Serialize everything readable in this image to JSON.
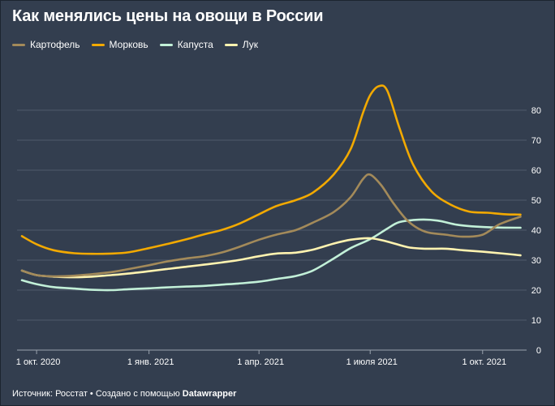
{
  "title": "Как менялись цены на овощи в России",
  "footer": {
    "source": "Источник: Росстат • Создано с помощью ",
    "tool": "Datawrapper"
  },
  "chart_data": {
    "type": "line",
    "xlabel": "",
    "ylabel": "",
    "ylim": [
      0,
      90
    ],
    "yticks": [
      0,
      10,
      20,
      30,
      40,
      50,
      60,
      70,
      80
    ],
    "xlim": [
      "2020-09-15",
      "2021-11-06"
    ],
    "xticks": [
      {
        "date": "2020-10-01",
        "label": "1 окт. 2020"
      },
      {
        "date": "2021-01-01",
        "label": "1 янв. 2021"
      },
      {
        "date": "2021-04-01",
        "label": "1 апр. 2021"
      },
      {
        "date": "2021-07-01",
        "label": "1 июля 2021"
      },
      {
        "date": "2021-10-01",
        "label": "1 окт. 2021"
      }
    ],
    "grid": true,
    "legend": "top-left",
    "series": [
      {
        "name": "Картофель",
        "color": "#a38a5a",
        "points": [
          [
            "2020-09-19",
            26.5
          ],
          [
            "2020-10-01",
            25.0
          ],
          [
            "2020-10-15",
            24.6
          ],
          [
            "2020-11-01",
            24.8
          ],
          [
            "2020-11-15",
            25.3
          ],
          [
            "2020-12-01",
            26.0
          ],
          [
            "2020-12-15",
            27.0
          ],
          [
            "2021-01-01",
            28.3
          ],
          [
            "2021-01-15",
            29.5
          ],
          [
            "2021-02-01",
            30.6
          ],
          [
            "2021-02-15",
            31.3
          ],
          [
            "2021-03-01",
            32.5
          ],
          [
            "2021-03-15",
            34.3
          ],
          [
            "2021-04-01",
            36.8
          ],
          [
            "2021-04-15",
            38.5
          ],
          [
            "2021-05-01",
            40.0
          ],
          [
            "2021-05-15",
            42.5
          ],
          [
            "2021-06-01",
            46.0
          ],
          [
            "2021-06-15",
            51.0
          ],
          [
            "2021-06-25",
            57.0
          ],
          [
            "2021-07-01",
            58.5
          ],
          [
            "2021-07-10",
            55.0
          ],
          [
            "2021-07-20",
            49.0
          ],
          [
            "2021-08-01",
            43.0
          ],
          [
            "2021-08-15",
            39.5
          ],
          [
            "2021-09-01",
            38.5
          ],
          [
            "2021-09-15",
            37.8
          ],
          [
            "2021-10-01",
            38.5
          ],
          [
            "2021-10-15",
            42.0
          ],
          [
            "2021-11-01",
            44.5
          ]
        ]
      },
      {
        "name": "Морковь",
        "color": "#f2a900",
        "points": [
          [
            "2020-09-19",
            38.0
          ],
          [
            "2020-10-01",
            35.3
          ],
          [
            "2020-10-15",
            33.3
          ],
          [
            "2020-11-01",
            32.3
          ],
          [
            "2020-11-15",
            32.1
          ],
          [
            "2020-12-01",
            32.2
          ],
          [
            "2020-12-15",
            32.6
          ],
          [
            "2021-01-01",
            34.0
          ],
          [
            "2021-01-15",
            35.3
          ],
          [
            "2021-02-01",
            37.0
          ],
          [
            "2021-02-15",
            38.6
          ],
          [
            "2021-03-01",
            40.0
          ],
          [
            "2021-03-15",
            42.0
          ],
          [
            "2021-04-01",
            45.3
          ],
          [
            "2021-04-15",
            48.0
          ],
          [
            "2021-05-01",
            50.0
          ],
          [
            "2021-05-15",
            52.5
          ],
          [
            "2021-06-01",
            58.5
          ],
          [
            "2021-06-15",
            67.0
          ],
          [
            "2021-06-25",
            79.0
          ],
          [
            "2021-07-01",
            85.0
          ],
          [
            "2021-07-08",
            88.0
          ],
          [
            "2021-07-15",
            86.5
          ],
          [
            "2021-07-25",
            74.0
          ],
          [
            "2021-08-05",
            62.0
          ],
          [
            "2021-08-20",
            53.0
          ],
          [
            "2021-09-05",
            48.5
          ],
          [
            "2021-09-20",
            46.2
          ],
          [
            "2021-10-05",
            45.8
          ],
          [
            "2021-10-20",
            45.3
          ],
          [
            "2021-11-01",
            45.2
          ]
        ]
      },
      {
        "name": "Капуста",
        "color": "#c2f0d8",
        "points": [
          [
            "2020-09-19",
            23.3
          ],
          [
            "2020-10-01",
            22.0
          ],
          [
            "2020-10-15",
            21.0
          ],
          [
            "2020-11-01",
            20.5
          ],
          [
            "2020-11-15",
            20.1
          ],
          [
            "2020-12-01",
            20.0
          ],
          [
            "2020-12-15",
            20.3
          ],
          [
            "2021-01-01",
            20.6
          ],
          [
            "2021-01-15",
            20.9
          ],
          [
            "2021-02-01",
            21.2
          ],
          [
            "2021-02-15",
            21.4
          ],
          [
            "2021-03-01",
            21.8
          ],
          [
            "2021-03-15",
            22.2
          ],
          [
            "2021-04-01",
            22.8
          ],
          [
            "2021-04-15",
            23.7
          ],
          [
            "2021-05-01",
            24.7
          ],
          [
            "2021-05-15",
            26.5
          ],
          [
            "2021-06-01",
            30.5
          ],
          [
            "2021-06-15",
            34.0
          ],
          [
            "2021-07-01",
            37.0
          ],
          [
            "2021-07-15",
            40.5
          ],
          [
            "2021-07-25",
            42.7
          ],
          [
            "2021-08-10",
            43.5
          ],
          [
            "2021-08-25",
            43.2
          ],
          [
            "2021-09-10",
            41.8
          ],
          [
            "2021-09-25",
            41.2
          ],
          [
            "2021-10-10",
            40.9
          ],
          [
            "2021-11-01",
            40.8
          ]
        ]
      },
      {
        "name": "Лук",
        "color": "#fff3b0",
        "points": [
          [
            "2020-09-19",
            26.5
          ],
          [
            "2020-10-01",
            25.0
          ],
          [
            "2020-10-15",
            24.5
          ],
          [
            "2020-11-01",
            24.3
          ],
          [
            "2020-11-15",
            24.5
          ],
          [
            "2020-12-01",
            25.0
          ],
          [
            "2020-12-15",
            25.5
          ],
          [
            "2021-01-01",
            26.3
          ],
          [
            "2021-01-15",
            27.0
          ],
          [
            "2021-02-01",
            27.8
          ],
          [
            "2021-02-15",
            28.5
          ],
          [
            "2021-03-01",
            29.2
          ],
          [
            "2021-03-15",
            30.0
          ],
          [
            "2021-04-01",
            31.3
          ],
          [
            "2021-04-15",
            32.2
          ],
          [
            "2021-05-01",
            32.5
          ],
          [
            "2021-05-15",
            33.5
          ],
          [
            "2021-06-01",
            35.5
          ],
          [
            "2021-06-15",
            36.8
          ],
          [
            "2021-07-01",
            37.3
          ],
          [
            "2021-07-15",
            36.2
          ],
          [
            "2021-08-01",
            34.3
          ],
          [
            "2021-08-15",
            33.8
          ],
          [
            "2021-09-01",
            33.8
          ],
          [
            "2021-09-15",
            33.3
          ],
          [
            "2021-10-01",
            32.8
          ],
          [
            "2021-10-15",
            32.3
          ],
          [
            "2021-11-01",
            31.6
          ]
        ]
      }
    ]
  },
  "colors": {
    "background": "#333e4f",
    "grid": "#4f5a6b",
    "text": "#ffffff"
  }
}
